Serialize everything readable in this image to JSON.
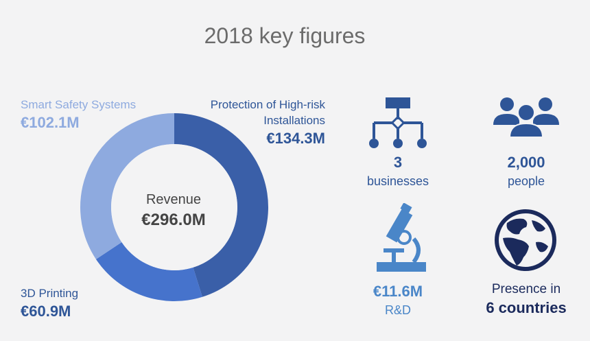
{
  "title": "2018 key figures",
  "chart_data": {
    "type": "pie",
    "center": {
      "label": "Revenue",
      "value": "€296.0M"
    },
    "slices": [
      {
        "name": "Protection of High-risk Installations",
        "value": 134.3,
        "value_label": "€134.3M",
        "color": "#3a5fa8"
      },
      {
        "name": "3D Printing",
        "value": 60.9,
        "value_label": "€60.9M",
        "color": "#4673cc"
      },
      {
        "name": "Smart Safety Systems",
        "value": 102.1,
        "value_label": "€102.1M",
        "color": "#8eaadf"
      }
    ],
    "segment_labels": {
      "protection_line1": "Protection of High-risk",
      "protection_line2": "Installations"
    }
  },
  "figures": [
    {
      "number": "3",
      "unit": "businesses",
      "icon": "org-chart-icon",
      "color": "#2e5597"
    },
    {
      "number": "2,000",
      "unit": "people",
      "icon": "people-icon",
      "color": "#2e5597"
    },
    {
      "number": "€11.6M",
      "unit": "R&D",
      "icon": "microscope-icon",
      "color": "#4a86c8"
    },
    {
      "number": "6 countries",
      "unit": "Presence in",
      "icon": "globe-icon",
      "color": "#1b2a5c"
    }
  ],
  "colors": {
    "dark_blue": "#2e5597",
    "mid_blue": "#4a86c8",
    "light_blue": "#8eaadf",
    "navy": "#1b2a5c"
  }
}
